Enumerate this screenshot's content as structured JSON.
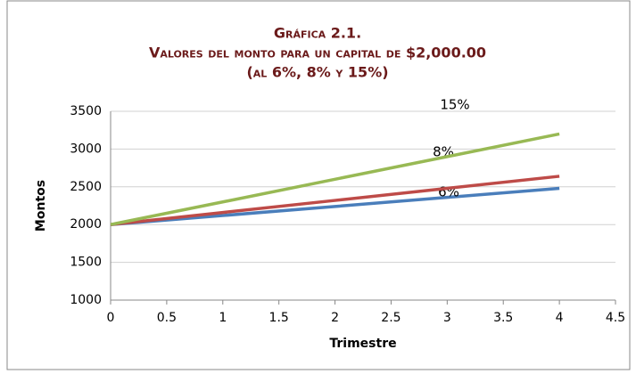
{
  "chart_data": {
    "type": "line",
    "title": [
      "Gráfica 2.1.",
      "Valores del monto para un capital de $2,000.00",
      "(al 6%, 8% y 15%)"
    ],
    "x_label": "Trimestre",
    "y_label": "Montos",
    "x": [
      0,
      1,
      2,
      3,
      4
    ],
    "series": [
      {
        "name": "6%",
        "color": "#4a7ebb",
        "values": [
          2000,
          2120,
          2240,
          2360,
          2480
        ]
      },
      {
        "name": "8%",
        "color": "#be4b48",
        "values": [
          2000,
          2160,
          2320,
          2480,
          2640
        ]
      },
      {
        "name": "15%",
        "color": "#98b954",
        "values": [
          2000,
          2300,
          2600,
          2900,
          3200
        ]
      }
    ],
    "xlim": [
      0,
      4.5
    ],
    "xticks": [
      0,
      0.5,
      1,
      1.5,
      2,
      2.5,
      3,
      3.5,
      4,
      4.5
    ],
    "ylim": [
      1000,
      3500
    ],
    "yticks": [
      1000,
      1500,
      2000,
      2500,
      3000,
      3500
    ],
    "grid": true
  }
}
